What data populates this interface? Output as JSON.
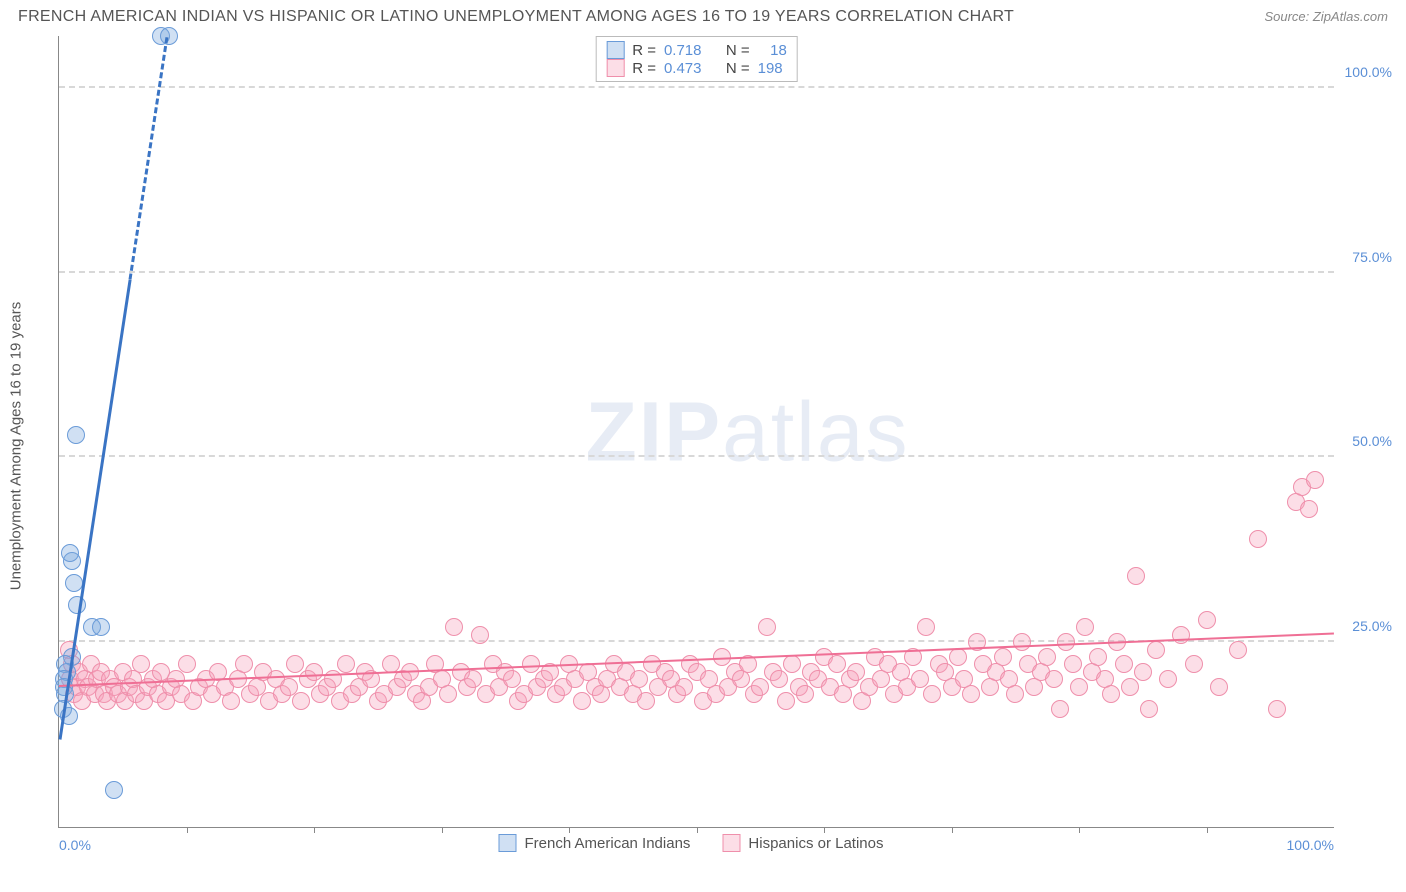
{
  "meta": {
    "title": "FRENCH AMERICAN INDIAN VS HISPANIC OR LATINO UNEMPLOYMENT AMONG AGES 16 TO 19 YEARS CORRELATION CHART",
    "source_label": "Source: ",
    "source_value": "ZipAtlas.com",
    "ylabel": "Unemployment Among Ages 16 to 19 years",
    "watermark_left": "ZIP",
    "watermark_right": "atlas"
  },
  "chart": {
    "type": "scatter",
    "xlim": [
      0,
      100
    ],
    "ylim": [
      0,
      107
    ],
    "background_color": "#ffffff",
    "grid_color": "#d8d8d8",
    "axis_color": "#888888",
    "tick_color": "#5b8fd6",
    "tick_fontsize": 14,
    "yticks": [
      25,
      50,
      75,
      100
    ],
    "ytick_labels": [
      "25.0%",
      "50.0%",
      "75.0%",
      "100.0%"
    ],
    "xticks_minor": [
      10,
      20,
      30,
      40,
      50,
      60,
      70,
      80,
      90
    ],
    "xtick_left": "0.0%",
    "xtick_right": "100.0%"
  },
  "series": {
    "blue": {
      "name": "French American Indians",
      "fill": "rgba(120,165,220,0.35)",
      "border": "#6a9bd8",
      "marker_radius": 9,
      "marker_border_width": 1.5,
      "R_label": "R =",
      "R": "0.718",
      "N_label": "N =",
      "N": "18",
      "trend": {
        "x1": 0.1,
        "y1": 12,
        "x2": 8.5,
        "y2": 107,
        "color": "#3a74c4",
        "width": 3,
        "solid_until_x": 5.6
      },
      "points": [
        [
          8.0,
          107
        ],
        [
          8.6,
          107
        ],
        [
          1.3,
          53
        ],
        [
          1.0,
          36
        ],
        [
          0.9,
          37
        ],
        [
          1.2,
          33
        ],
        [
          1.4,
          30
        ],
        [
          2.6,
          27
        ],
        [
          3.3,
          27
        ],
        [
          1.0,
          23
        ],
        [
          0.5,
          22
        ],
        [
          0.6,
          21
        ],
        [
          0.4,
          20
        ],
        [
          0.4,
          19
        ],
        [
          0.5,
          18
        ],
        [
          0.3,
          16
        ],
        [
          0.8,
          15
        ],
        [
          4.3,
          5
        ]
      ]
    },
    "pink": {
      "name": "Hispanics or Latinos",
      "fill": "rgba(245,160,185,0.35)",
      "border": "#ef8fab",
      "marker_radius": 9,
      "marker_border_width": 1.5,
      "R_label": "R =",
      "R": "0.473",
      "N_label": "N =",
      "N": "198",
      "trend": {
        "x1": 0,
        "y1": 19.2,
        "x2": 100,
        "y2": 26.3,
        "color": "#ef6f95",
        "width": 2.5
      },
      "points": [
        [
          0.8,
          24
        ],
        [
          0.9,
          20
        ],
        [
          1.0,
          22
        ],
        [
          1.2,
          18
        ],
        [
          1.4,
          19
        ],
        [
          1.6,
          21
        ],
        [
          1.8,
          17
        ],
        [
          2.0,
          20
        ],
        [
          2.3,
          19
        ],
        [
          2.5,
          22
        ],
        [
          2.8,
          18
        ],
        [
          3.0,
          20
        ],
        [
          3.3,
          21
        ],
        [
          3.5,
          18
        ],
        [
          3.8,
          17
        ],
        [
          4.0,
          20
        ],
        [
          4.3,
          19
        ],
        [
          4.6,
          18
        ],
        [
          5.0,
          21
        ],
        [
          5.2,
          17
        ],
        [
          5.5,
          19
        ],
        [
          5.8,
          20
        ],
        [
          6.0,
          18
        ],
        [
          6.4,
          22
        ],
        [
          6.7,
          17
        ],
        [
          7.0,
          19
        ],
        [
          7.4,
          20
        ],
        [
          7.8,
          18
        ],
        [
          8.0,
          21
        ],
        [
          8.4,
          17
        ],
        [
          8.8,
          19
        ],
        [
          9.2,
          20
        ],
        [
          9.6,
          18
        ],
        [
          10.0,
          22
        ],
        [
          10.5,
          17
        ],
        [
          11.0,
          19
        ],
        [
          11.5,
          20
        ],
        [
          12.0,
          18
        ],
        [
          12.5,
          21
        ],
        [
          13.0,
          19
        ],
        [
          13.5,
          17
        ],
        [
          14.0,
          20
        ],
        [
          14.5,
          22
        ],
        [
          15.0,
          18
        ],
        [
          15.5,
          19
        ],
        [
          16.0,
          21
        ],
        [
          16.5,
          17
        ],
        [
          17.0,
          20
        ],
        [
          17.5,
          18
        ],
        [
          18.0,
          19
        ],
        [
          18.5,
          22
        ],
        [
          19.0,
          17
        ],
        [
          19.5,
          20
        ],
        [
          20.0,
          21
        ],
        [
          20.5,
          18
        ],
        [
          21.0,
          19
        ],
        [
          21.5,
          20
        ],
        [
          22.0,
          17
        ],
        [
          22.5,
          22
        ],
        [
          23.0,
          18
        ],
        [
          23.5,
          19
        ],
        [
          24.0,
          21
        ],
        [
          24.5,
          20
        ],
        [
          25.0,
          17
        ],
        [
          25.5,
          18
        ],
        [
          26.0,
          22
        ],
        [
          26.5,
          19
        ],
        [
          27.0,
          20
        ],
        [
          27.5,
          21
        ],
        [
          28.0,
          18
        ],
        [
          28.5,
          17
        ],
        [
          29.0,
          19
        ],
        [
          29.5,
          22
        ],
        [
          30.0,
          20
        ],
        [
          30.5,
          18
        ],
        [
          31.0,
          27
        ],
        [
          31.5,
          21
        ],
        [
          32.0,
          19
        ],
        [
          32.5,
          20
        ],
        [
          33.0,
          26
        ],
        [
          33.5,
          18
        ],
        [
          34.0,
          22
        ],
        [
          34.5,
          19
        ],
        [
          35.0,
          21
        ],
        [
          35.5,
          20
        ],
        [
          36.0,
          17
        ],
        [
          36.5,
          18
        ],
        [
          37.0,
          22
        ],
        [
          37.5,
          19
        ],
        [
          38.0,
          20
        ],
        [
          38.5,
          21
        ],
        [
          39.0,
          18
        ],
        [
          39.5,
          19
        ],
        [
          40.0,
          22
        ],
        [
          40.5,
          20
        ],
        [
          41.0,
          17
        ],
        [
          41.5,
          21
        ],
        [
          42.0,
          19
        ],
        [
          42.5,
          18
        ],
        [
          43.0,
          20
        ],
        [
          43.5,
          22
        ],
        [
          44.0,
          19
        ],
        [
          44.5,
          21
        ],
        [
          45.0,
          18
        ],
        [
          45.5,
          20
        ],
        [
          46.0,
          17
        ],
        [
          46.5,
          22
        ],
        [
          47.0,
          19
        ],
        [
          47.5,
          21
        ],
        [
          48.0,
          20
        ],
        [
          48.5,
          18
        ],
        [
          49.0,
          19
        ],
        [
          49.5,
          22
        ],
        [
          50.0,
          21
        ],
        [
          50.5,
          17
        ],
        [
          51.0,
          20
        ],
        [
          51.5,
          18
        ],
        [
          52.0,
          23
        ],
        [
          52.5,
          19
        ],
        [
          53.0,
          21
        ],
        [
          53.5,
          20
        ],
        [
          54.0,
          22
        ],
        [
          54.5,
          18
        ],
        [
          55.0,
          19
        ],
        [
          55.5,
          27
        ],
        [
          56.0,
          21
        ],
        [
          56.5,
          20
        ],
        [
          57.0,
          17
        ],
        [
          57.5,
          22
        ],
        [
          58.0,
          19
        ],
        [
          58.5,
          18
        ],
        [
          59.0,
          21
        ],
        [
          59.5,
          20
        ],
        [
          60.0,
          23
        ],
        [
          60.5,
          19
        ],
        [
          61.0,
          22
        ],
        [
          61.5,
          18
        ],
        [
          62.0,
          20
        ],
        [
          62.5,
          21
        ],
        [
          63.0,
          17
        ],
        [
          63.5,
          19
        ],
        [
          64.0,
          23
        ],
        [
          64.5,
          20
        ],
        [
          65.0,
          22
        ],
        [
          65.5,
          18
        ],
        [
          66.0,
          21
        ],
        [
          66.5,
          19
        ],
        [
          67.0,
          23
        ],
        [
          67.5,
          20
        ],
        [
          68.0,
          27
        ],
        [
          68.5,
          18
        ],
        [
          69.0,
          22
        ],
        [
          69.5,
          21
        ],
        [
          70.0,
          19
        ],
        [
          70.5,
          23
        ],
        [
          71.0,
          20
        ],
        [
          71.5,
          18
        ],
        [
          72.0,
          25
        ],
        [
          72.5,
          22
        ],
        [
          73.0,
          19
        ],
        [
          73.5,
          21
        ],
        [
          74.0,
          23
        ],
        [
          74.5,
          20
        ],
        [
          75.0,
          18
        ],
        [
          75.5,
          25
        ],
        [
          76.0,
          22
        ],
        [
          76.5,
          19
        ],
        [
          77.0,
          21
        ],
        [
          77.5,
          23
        ],
        [
          78.0,
          20
        ],
        [
          78.5,
          16
        ],
        [
          79.0,
          25
        ],
        [
          79.5,
          22
        ],
        [
          80.0,
          19
        ],
        [
          80.5,
          27
        ],
        [
          81.0,
          21
        ],
        [
          81.5,
          23
        ],
        [
          82.0,
          20
        ],
        [
          82.5,
          18
        ],
        [
          83.0,
          25
        ],
        [
          83.5,
          22
        ],
        [
          84.0,
          19
        ],
        [
          84.5,
          34
        ],
        [
          85.0,
          21
        ],
        [
          85.5,
          16
        ],
        [
          86.0,
          24
        ],
        [
          87.0,
          20
        ],
        [
          88.0,
          26
        ],
        [
          89.0,
          22
        ],
        [
          90.0,
          28
        ],
        [
          91.0,
          19
        ],
        [
          92.5,
          24
        ],
        [
          94.0,
          39
        ],
        [
          95.5,
          16
        ],
        [
          97.0,
          44
        ],
        [
          97.5,
          46
        ],
        [
          98.0,
          43
        ],
        [
          98.5,
          47
        ]
      ]
    }
  }
}
